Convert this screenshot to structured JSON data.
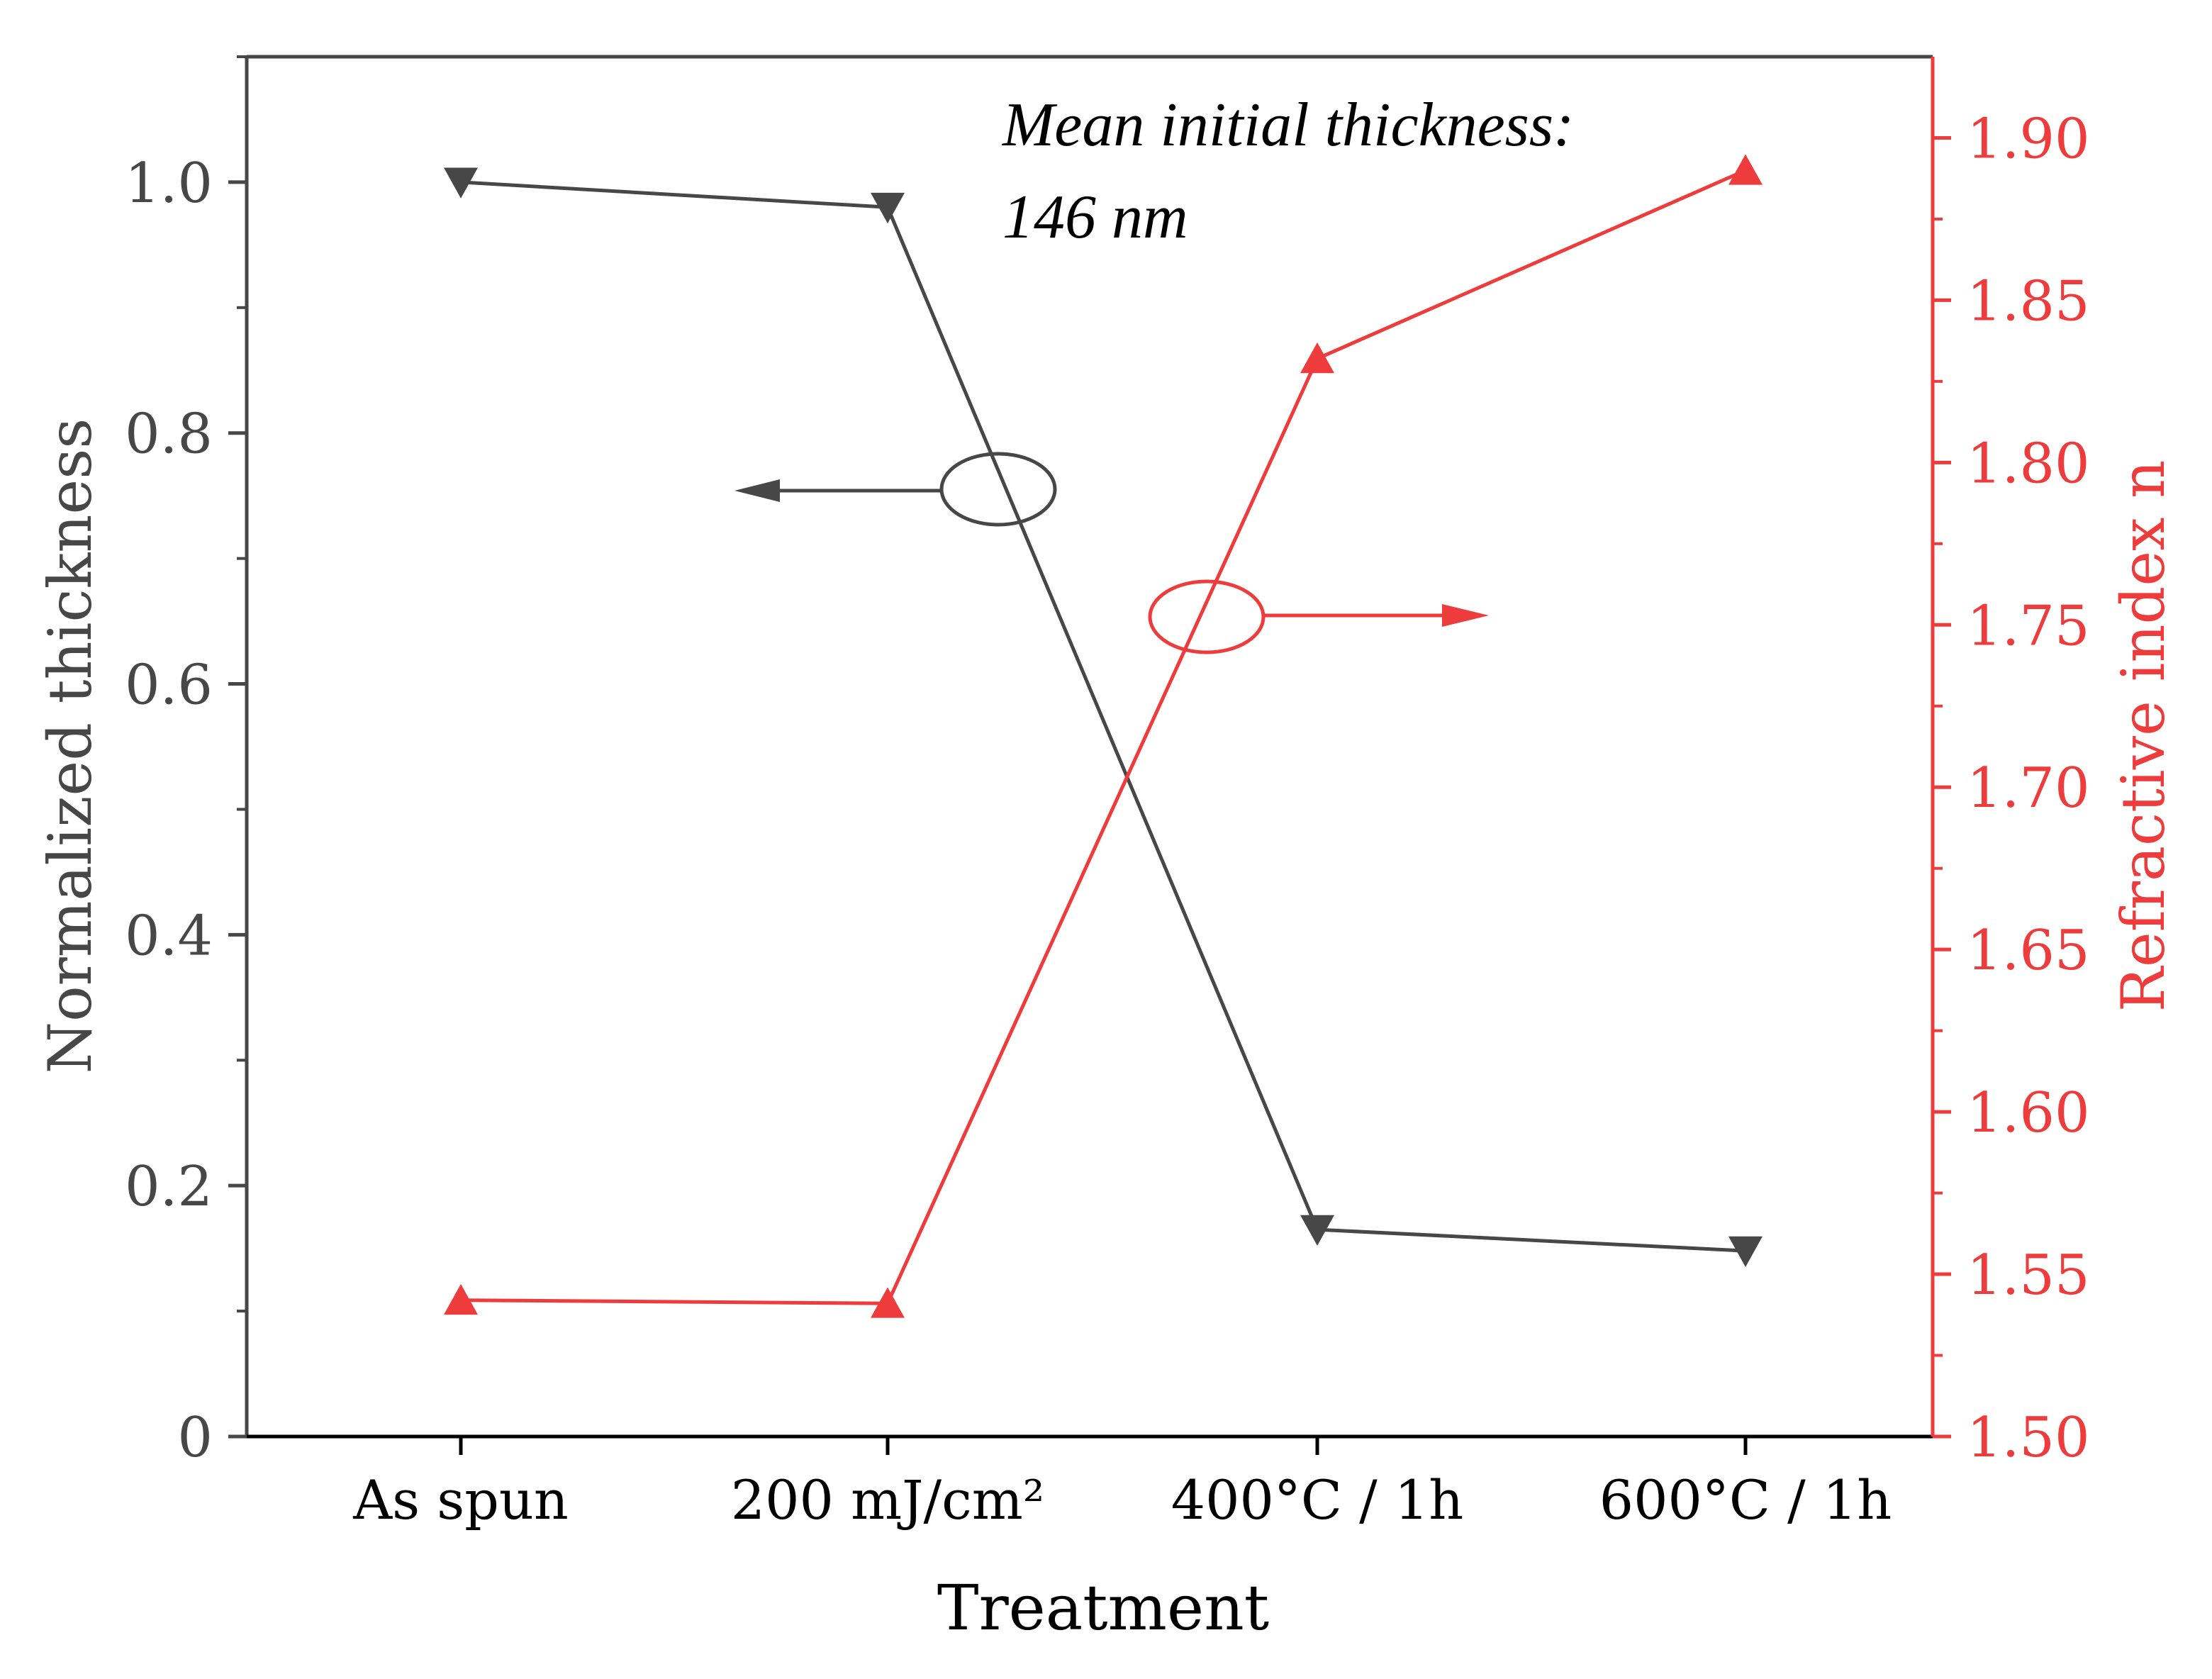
{
  "chart_data": {
    "type": "line",
    "title": "",
    "xlabel": "Treatment",
    "categories": [
      "As spun",
      "200 mJ/cm²",
      "400°C / 1h",
      "600°C / 1h"
    ],
    "ylabel_left": "Normalized thickness",
    "ylabel_right": "Refractive index n",
    "ylim_left": [
      0,
      1.1
    ],
    "ylim_right": [
      1.5,
      1.925
    ],
    "yticks_left": [
      "0",
      "0.2",
      "0.4",
      "0.6",
      "0.8",
      "1.0"
    ],
    "yticks_right": [
      "1.50",
      "1.55",
      "1.60",
      "1.65",
      "1.70",
      "1.75",
      "1.80",
      "1.85",
      "1.90"
    ],
    "series": [
      {
        "name": "Normalized thickness",
        "axis": "left",
        "marker": "triangle-down",
        "color": "#474747",
        "values": [
          1.0,
          0.98,
          0.165,
          0.148
        ]
      },
      {
        "name": "Refractive index n",
        "axis": "right",
        "marker": "triangle-up",
        "color": "#ee3b3b",
        "values": [
          1.542,
          1.541,
          1.832,
          1.89
        ]
      }
    ],
    "annotation": [
      "Mean initial thickness:",
      "146 nm"
    ],
    "grid": false
  }
}
